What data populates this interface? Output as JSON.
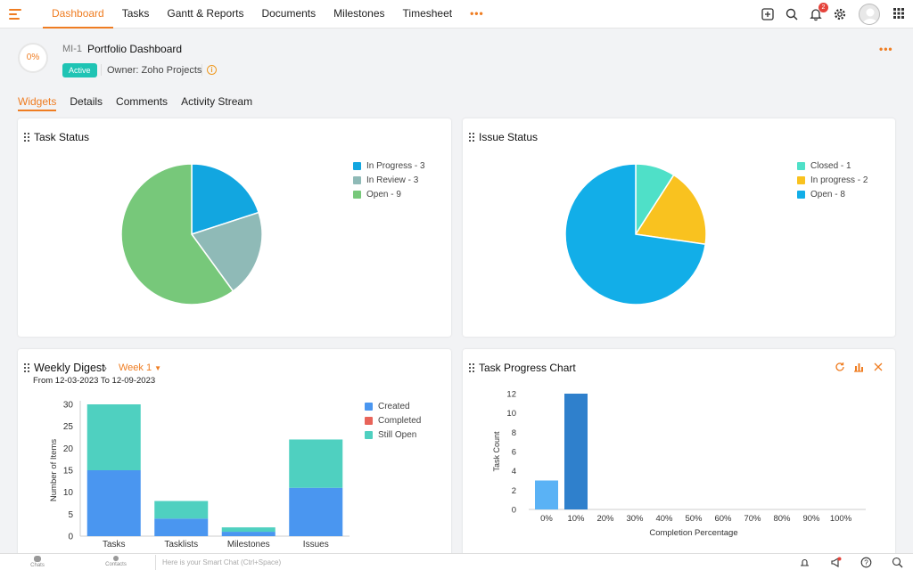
{
  "nav": {
    "items": [
      "Dashboard",
      "Tasks",
      "Gantt & Reports",
      "Documents",
      "Milestones",
      "Timesheet"
    ],
    "more": "•••",
    "notification_count": "2"
  },
  "project": {
    "percent": "0%",
    "id": "MI-1",
    "name": "Portfolio Dashboard",
    "status": "Active",
    "owner": "Owner:  Zoho Projects",
    "more": "•••"
  },
  "tabs": [
    "Widgets",
    "Details",
    "Comments",
    "Activity Stream"
  ],
  "widgets": {
    "task_status": {
      "title": "Task Status",
      "chart_data": {
        "type": "pie",
        "slices": [
          {
            "label": "In Progress - 3",
            "value": 3,
            "color": "#12a6e0"
          },
          {
            "label": "In Review - 3",
            "value": 3,
            "color": "#8fbab7"
          },
          {
            "label": "Open - 9",
            "value": 9,
            "color": "#77c87a"
          }
        ]
      }
    },
    "issue_status": {
      "title": "Issue Status",
      "chart_data": {
        "type": "pie",
        "slices": [
          {
            "label": "Closed - 1",
            "value": 1,
            "color": "#4fe0c8"
          },
          {
            "label": "In progress - 2",
            "value": 2,
            "color": "#f9c21f"
          },
          {
            "label": "Open - 8",
            "value": 8,
            "color": "#12aee8"
          }
        ]
      }
    },
    "weekly_digest": {
      "title": "Weekly Digest",
      "week": "Week 1",
      "range": "From 12-03-2023 To 12-09-2023",
      "chart_data": {
        "type": "bar",
        "stacked": true,
        "categories": [
          "Tasks",
          "Tasklists",
          "Milestones",
          "Issues"
        ],
        "series": [
          {
            "name": "Created",
            "values": [
              15,
              4,
              1,
              11
            ],
            "color": "#4a96f0"
          },
          {
            "name": "Completed",
            "values": [
              0,
              0,
              0,
              0
            ],
            "color": "#e8645a"
          },
          {
            "name": "Still Open",
            "values": [
              15,
              4,
              1,
              11
            ],
            "color": "#4fd0c0"
          }
        ],
        "ylabel": "Number of Items",
        "ylim": [
          0,
          30
        ],
        "yticks": [
          0,
          5,
          10,
          15,
          20,
          25,
          30
        ],
        "legend": "right"
      }
    },
    "task_progress": {
      "title": "Task Progress Chart",
      "chart_data": {
        "type": "bar",
        "categories": [
          "0%",
          "10%",
          "20%",
          "30%",
          "40%",
          "50%",
          "60%",
          "70%",
          "80%",
          "90%",
          "100%"
        ],
        "values": [
          3,
          12,
          0,
          0,
          0,
          0,
          0,
          0,
          0,
          0,
          0
        ],
        "colors": [
          "#5ab2f5",
          "#2f80cc"
        ],
        "xlabel": "Completion Percentage",
        "ylabel": "Task Count",
        "ylim": [
          0,
          12
        ],
        "yticks": [
          0,
          2,
          4,
          6,
          8,
          10,
          12
        ]
      }
    }
  },
  "bottom": {
    "chats": "Chats",
    "contacts": "Contacts",
    "smartchat_placeholder": "Here is your Smart Chat (Ctrl+Space)"
  }
}
